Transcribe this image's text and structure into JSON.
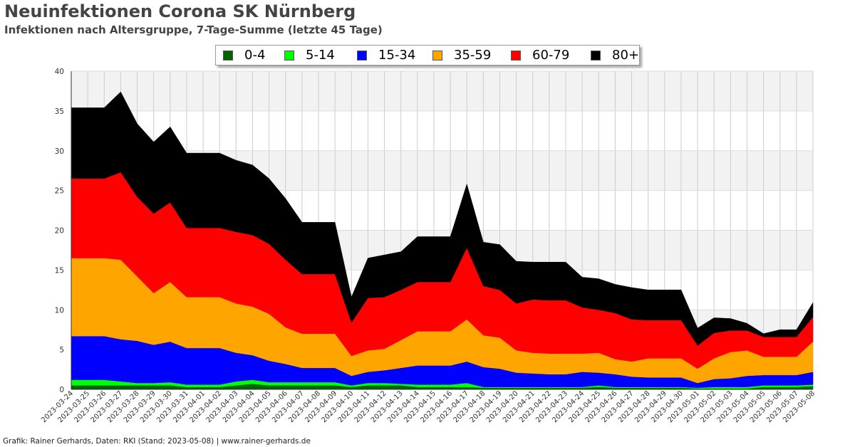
{
  "chart_data": {
    "type": "area",
    "stacked": true,
    "title": "Neuinfektionen Corona SK Nürnberg",
    "subtitle": "Infektionen nach Altersgruppe, 7-Tage-Summe (letzte 45 Tage)",
    "footer": "Grafik: Rainer Gerhards, Daten: RKI (Stand: 2023-05-08) | www.rainer-gerhards.de",
    "ylim": [
      0,
      40
    ],
    "yticks": [
      "0",
      "5",
      "10",
      "15",
      "20",
      "25",
      "30",
      "35",
      "40"
    ],
    "legend_position": "top-center",
    "x": [
      "2023-03-24",
      "2023-03-25",
      "2023-03-26",
      "2023-03-27",
      "2023-03-28",
      "2023-03-29",
      "2023-03-30",
      "2023-03-31",
      "2023-04-01",
      "2023-04-02",
      "2023-04-03",
      "2023-04-04",
      "2023-04-05",
      "2023-04-06",
      "2023-04-07",
      "2023-04-08",
      "2023-04-09",
      "2023-04-10",
      "2023-04-11",
      "2023-04-12",
      "2023-04-13",
      "2023-04-14",
      "2023-04-15",
      "2023-04-16",
      "2023-04-17",
      "2023-04-18",
      "2023-04-19",
      "2023-04-20",
      "2023-04-21",
      "2023-04-22",
      "2023-04-23",
      "2023-04-24",
      "2023-04-25",
      "2023-04-26",
      "2023-04-27",
      "2023-04-28",
      "2023-04-29",
      "2023-04-30",
      "2023-05-01",
      "2023-05-02",
      "2023-05-03",
      "2023-05-04",
      "2023-05-05",
      "2023-05-06",
      "2023-05-07",
      "2023-05-08"
    ],
    "series": [
      {
        "name": "0-4",
        "color": "#006400",
        "values": [
          0.5,
          0.5,
          0.5,
          0.5,
          0.5,
          0.5,
          0.5,
          0.3,
          0.3,
          0.3,
          0.5,
          0.7,
          0.5,
          0.5,
          0.5,
          0.5,
          0.5,
          0.3,
          0.5,
          0.5,
          0.5,
          0.3,
          0.3,
          0.3,
          0.3,
          0.2,
          0.2,
          0.2,
          0.2,
          0.2,
          0.2,
          0.2,
          0.3,
          0.2,
          0.2,
          0.2,
          0.2,
          0.2,
          0.1,
          0.1,
          0.1,
          0.1,
          0.3,
          0.3,
          0.3,
          0.4
        ]
      },
      {
        "name": "5-14",
        "color": "#00ff00",
        "values": [
          0.7,
          0.7,
          0.7,
          0.5,
          0.3,
          0.3,
          0.4,
          0.3,
          0.3,
          0.3,
          0.5,
          0.5,
          0.4,
          0.4,
          0.4,
          0.4,
          0.4,
          0.2,
          0.3,
          0.3,
          0.2,
          0.3,
          0.3,
          0.3,
          0.5,
          0.1,
          0.1,
          0.1,
          0.1,
          0.1,
          0.1,
          0.1,
          0.2,
          0.1,
          0.1,
          0.1,
          0.1,
          0.1,
          0.1,
          0.2,
          0.2,
          0.2,
          0.2,
          0.2,
          0.2,
          0.2
        ]
      },
      {
        "name": "15-34",
        "color": "#0000ff",
        "values": [
          5.5,
          5.5,
          5.5,
          5.3,
          5.3,
          4.8,
          5.1,
          4.6,
          4.6,
          4.6,
          3.6,
          3.1,
          2.7,
          2.3,
          1.8,
          1.8,
          1.8,
          1.2,
          1.4,
          1.6,
          2.0,
          2.4,
          2.4,
          2.4,
          2.7,
          2.5,
          2.3,
          1.8,
          1.7,
          1.6,
          1.6,
          1.9,
          1.6,
          1.6,
          1.3,
          1.2,
          1.2,
          1.2,
          0.6,
          1.0,
          1.1,
          1.4,
          1.3,
          1.3,
          1.3,
          1.6
        ]
      },
      {
        "name": "35-59",
        "color": "#ffa500",
        "values": [
          9.8,
          9.8,
          9.8,
          10.0,
          8.1,
          6.5,
          7.5,
          6.4,
          6.4,
          6.4,
          6.2,
          6.1,
          5.9,
          4.6,
          4.3,
          4.3,
          4.3,
          2.5,
          2.7,
          2.7,
          3.5,
          4.3,
          4.3,
          4.3,
          5.3,
          4.0,
          3.9,
          2.8,
          2.6,
          2.6,
          2.6,
          2.3,
          2.5,
          1.9,
          1.9,
          2.4,
          2.4,
          2.4,
          1.8,
          2.6,
          3.3,
          3.2,
          2.3,
          2.3,
          2.3,
          3.8
        ]
      },
      {
        "name": "60-79",
        "color": "#ff0000",
        "values": [
          10.0,
          10.0,
          10.0,
          11.0,
          10.0,
          10.0,
          10.0,
          8.7,
          8.7,
          8.7,
          9.0,
          9.0,
          8.8,
          8.5,
          7.5,
          7.5,
          7.5,
          4.2,
          6.6,
          6.5,
          6.3,
          6.2,
          6.2,
          6.2,
          9.0,
          6.2,
          6.0,
          5.9,
          6.7,
          6.7,
          6.7,
          5.8,
          5.4,
          5.8,
          5.3,
          4.8,
          4.8,
          4.8,
          2.9,
          3.2,
          2.7,
          2.5,
          2.5,
          2.5,
          2.5,
          3.1
        ]
      },
      {
        "name": "80+",
        "color": "#000000",
        "values": [
          8.9,
          8.9,
          8.9,
          10.1,
          9.2,
          9.0,
          9.5,
          9.4,
          9.4,
          9.4,
          9.0,
          8.8,
          8.2,
          7.7,
          6.5,
          6.5,
          6.5,
          3.2,
          5.0,
          5.3,
          4.8,
          5.7,
          5.7,
          5.7,
          8.0,
          5.5,
          5.7,
          5.3,
          4.7,
          4.8,
          4.8,
          3.8,
          3.9,
          3.6,
          4.0,
          3.8,
          3.8,
          3.8,
          2.2,
          1.9,
          1.5,
          0.9,
          0.4,
          0.9,
          0.9,
          1.8
        ]
      }
    ]
  }
}
